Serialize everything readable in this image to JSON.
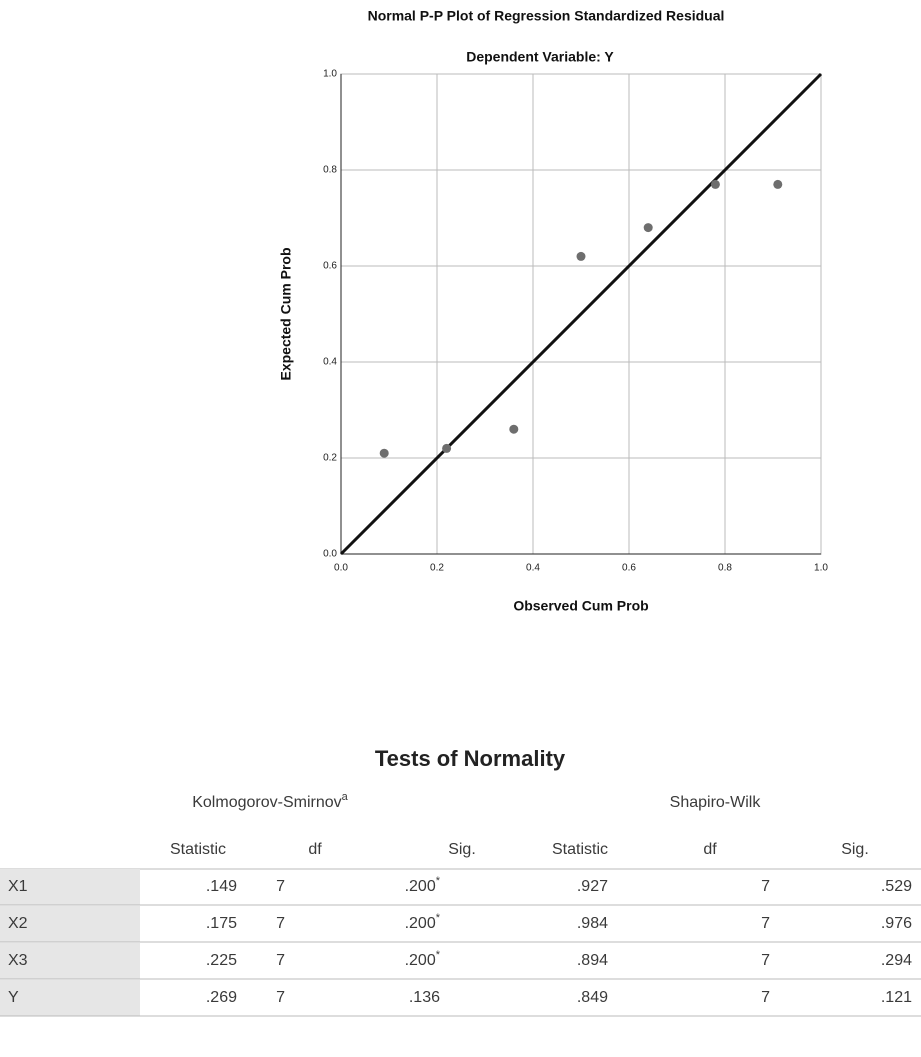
{
  "chart_data": {
    "type": "scatter",
    "title": "Normal P-P Plot of Regression Standardized Residual",
    "subtitle": "Dependent Variable: Y",
    "xlabel": "Observed Cum Prob",
    "ylabel": "Expected Cum Prob",
    "x": [
      0.09,
      0.22,
      0.36,
      0.5,
      0.64,
      0.78,
      0.91
    ],
    "values": [
      0.21,
      0.22,
      0.26,
      0.62,
      0.68,
      0.77,
      0.77
    ],
    "color": "#6e6e6e",
    "xlim": [
      0,
      1
    ],
    "ylim": [
      0,
      1
    ],
    "xticks": [
      {
        "value": 0,
        "label": "0.0"
      },
      0.2,
      0.4,
      0.6,
      0.8,
      {
        "value": 1,
        "label": "1.0"
      }
    ],
    "yticks": [
      {
        "value": 0,
        "label": "0.0"
      },
      0.2,
      0.4,
      0.6,
      0.8,
      {
        "value": 1,
        "label": "1.0"
      }
    ],
    "grid": true
  },
  "table": {
    "title": "Tests of Normality",
    "groups": [
      {
        "text": "Kolmogorov-Smirnov",
        "sup": "a"
      },
      {
        "text": "Shapiro-Wilk"
      }
    ],
    "columns": [
      "Statistic",
      "df",
      "Sig.",
      "Statistic",
      "df",
      "Sig."
    ],
    "rows": [
      [
        "X1",
        ".149",
        "7",
        {
          "text": ".200",
          "sup": "*"
        },
        ".927",
        "7",
        ".529"
      ],
      [
        "X2",
        ".175",
        "7",
        {
          "text": ".200",
          "sup": "*"
        },
        ".984",
        "7",
        ".976"
      ],
      [
        "X3",
        ".225",
        "7",
        {
          "text": ".200",
          "sup": "*"
        },
        ".894",
        "7",
        ".294"
      ],
      [
        "Y",
        ".269",
        "7",
        ".136",
        ".849",
        "7",
        ".121"
      ]
    ]
  }
}
